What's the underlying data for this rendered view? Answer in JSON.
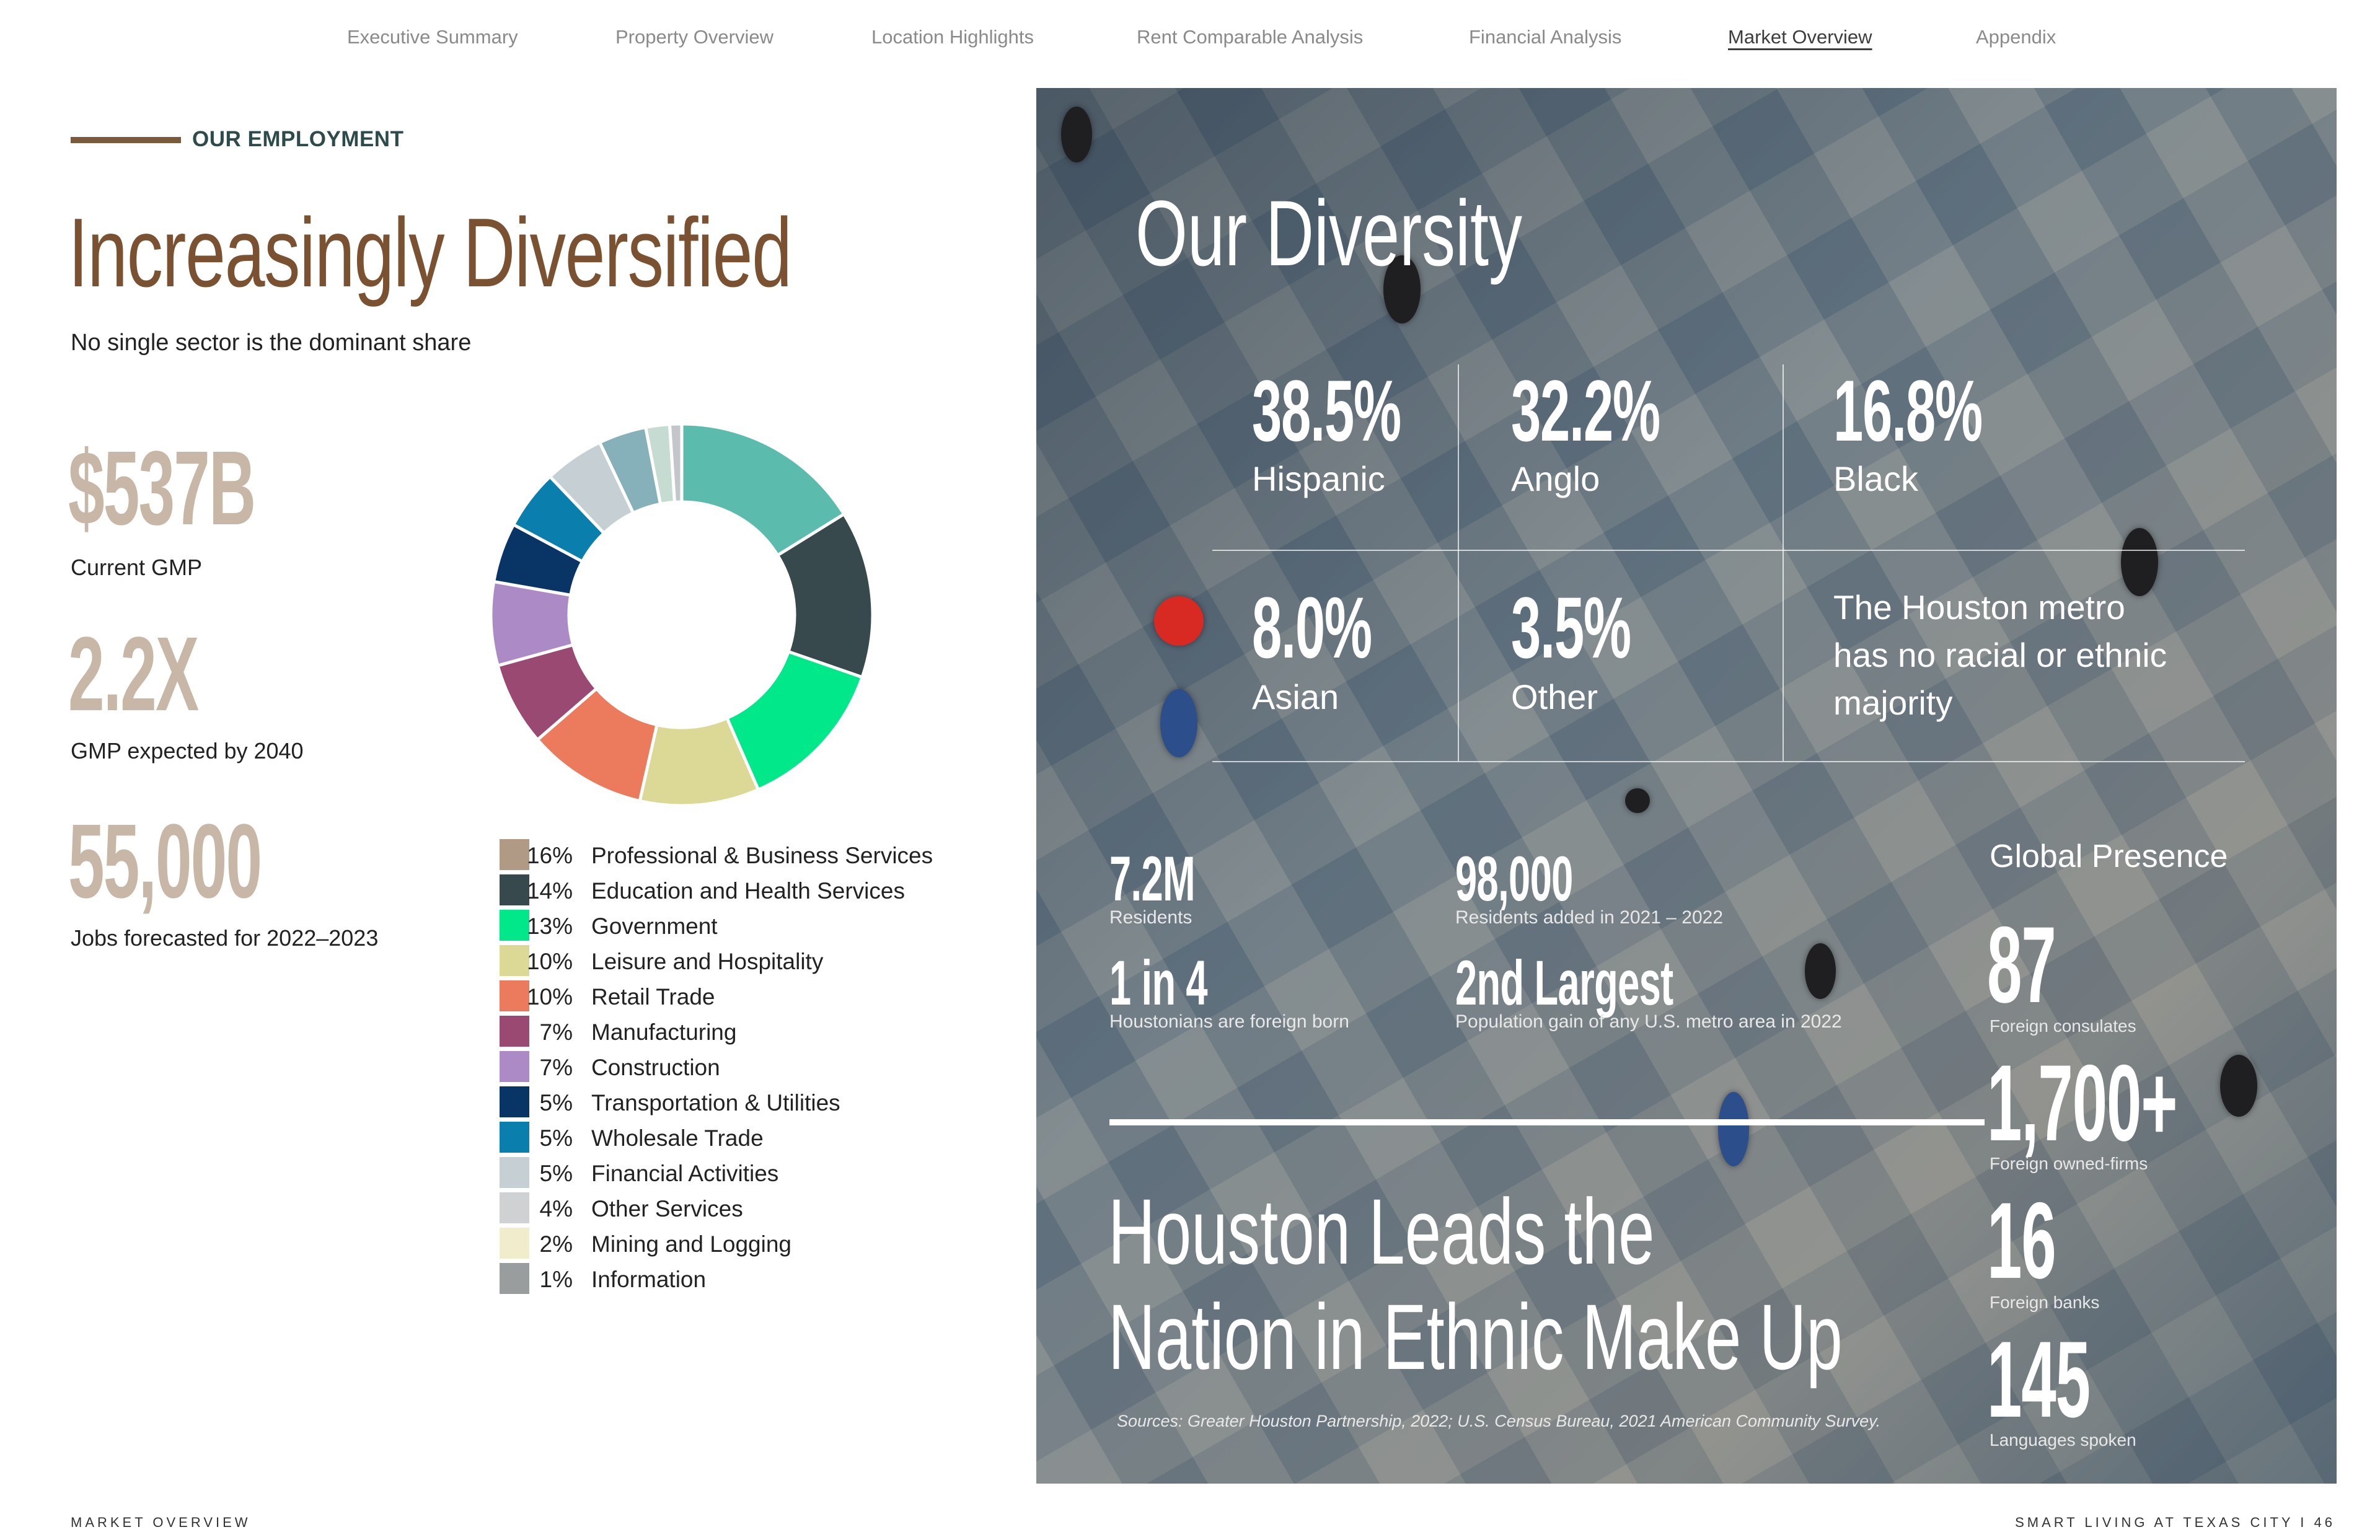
{
  "nav": {
    "items": [
      {
        "label": "Executive Summary",
        "active": false
      },
      {
        "label": "Property Overview",
        "active": false
      },
      {
        "label": "Location Highlights",
        "active": false
      },
      {
        "label": "Rent Comparable Analysis",
        "active": false
      },
      {
        "label": "Financial Analysis",
        "active": false
      },
      {
        "label": "Market Overview",
        "active": true
      },
      {
        "label": "Appendix",
        "active": false
      }
    ]
  },
  "left": {
    "section_label": "OUR EMPLOYMENT",
    "title": "Increasingly Diversified",
    "subtitle": "No single sector is the dominant share",
    "kpis": [
      {
        "value": "$537B",
        "label": "Current GMP"
      },
      {
        "value": "2.2X",
        "label": "GMP expected by 2040"
      },
      {
        "value": "55,000",
        "label": "Jobs forecasted for 2022–2023"
      }
    ]
  },
  "chart_data": {
    "type": "pie",
    "style": "donut",
    "slices": [
      {
        "label": "Professional & Business Services",
        "value": 16,
        "pct_label": "16%",
        "color": "#5bbcad"
      },
      {
        "label": "Education and Health Services",
        "value": 14,
        "pct_label": "14%",
        "color": "#37494d"
      },
      {
        "label": "Government",
        "value": 13,
        "pct_label": "13%",
        "color": "#00e88a"
      },
      {
        "label": "Leisure and Hospitality",
        "value": 10,
        "pct_label": "10%",
        "color": "#dcd896"
      },
      {
        "label": "Retail Trade",
        "value": 10,
        "pct_label": "10%",
        "color": "#ec7a5c"
      },
      {
        "label": "Manufacturing",
        "value": 7,
        "pct_label": "7%",
        "color": "#9a4a72"
      },
      {
        "label": "Construction",
        "value": 7,
        "pct_label": "7%",
        "color": "#ac8ac6"
      },
      {
        "label": "Transportation & Utilities",
        "value": 5,
        "pct_label": "5%",
        "color": "#083466"
      },
      {
        "label": "Wholesale Trade",
        "value": 5,
        "pct_label": "5%",
        "color": "#0a7fae"
      },
      {
        "label": "Financial Activities",
        "value": 5,
        "pct_label": "5%",
        "color": "#c6cfd4"
      },
      {
        "label": "Other Services",
        "value": 4,
        "pct_label": "4%",
        "color": "#86b1ba"
      },
      {
        "label": "Mining and Logging",
        "value": 2,
        "pct_label": "2%",
        "color": "#c6dcd3"
      },
      {
        "label": "Information",
        "value": 1,
        "pct_label": "1%",
        "color": "#c3c7c9"
      }
    ]
  },
  "legend": {
    "items": [
      {
        "pct": "16%",
        "label": "Professional & Business Services",
        "color": "#b09a85"
      },
      {
        "pct": "14%",
        "label": "Education and Health Services",
        "color": "#37494d"
      },
      {
        "pct": "13%",
        "label": "Government",
        "color": "#00e88a"
      },
      {
        "pct": "10%",
        "label": "Leisure and Hospitality",
        "color": "#dcd896"
      },
      {
        "pct": "10%",
        "label": "Retail Trade",
        "color": "#ec7a5c"
      },
      {
        "pct": "7%",
        "label": "Manufacturing",
        "color": "#9a4a72"
      },
      {
        "pct": "7%",
        "label": "Construction",
        "color": "#ac8ac6"
      },
      {
        "pct": "5%",
        "label": "Transportation & Utilities",
        "color": "#083466"
      },
      {
        "pct": "5%",
        "label": "Wholesale Trade",
        "color": "#0a7fae"
      },
      {
        "pct": "5%",
        "label": "Financial Activities",
        "color": "#c6cfd4"
      },
      {
        "pct": "4%",
        "label": "Other Services",
        "color": "#cfd1d2"
      },
      {
        "pct": "2%",
        "label": "Mining and Logging",
        "color": "#f1eccb"
      },
      {
        "pct": "1%",
        "label": "Information",
        "color": "#9a9d9e"
      }
    ]
  },
  "right": {
    "diversity_title": "Our Diversity",
    "ethnicity": [
      {
        "pct": "38.5%",
        "label": "Hispanic"
      },
      {
        "pct": "32.2%",
        "label": "Anglo"
      },
      {
        "pct": "16.8%",
        "label": "Black"
      },
      {
        "pct": "8.0%",
        "label": "Asian"
      },
      {
        "pct": "3.5%",
        "label": "Other"
      }
    ],
    "note": "The Houston metro has no racial or ethnic majority",
    "stats": [
      {
        "value": "7.2M",
        "label": "Residents"
      },
      {
        "value": "98,000",
        "label": "Residents added in 2021 – 2022"
      },
      {
        "value": "1 in 4",
        "label": "Houstonians are foreign born"
      },
      {
        "value": "2nd Largest",
        "label": "Population gain of any U.S. metro area in 2022"
      }
    ],
    "global": {
      "title": "Global Presence",
      "items": [
        {
          "value": "87",
          "label": "Foreign consulates"
        },
        {
          "value": "1,700+",
          "label": "Foreign owned-firms"
        },
        {
          "value": "16",
          "label": "Foreign banks"
        },
        {
          "value": "145",
          "label": "Languages spoken"
        }
      ]
    },
    "headline_line1": "Houston Leads the",
    "headline_line2": "Nation in Ethnic Make Up",
    "sources": "Sources: Greater Houston Partnership, 2022; U.S. Census Bureau, 2021 American Community Survey."
  },
  "footer": {
    "left": "MARKET OVERVIEW",
    "right": "SMART LIVING AT TEXAS CITY   I   46"
  }
}
